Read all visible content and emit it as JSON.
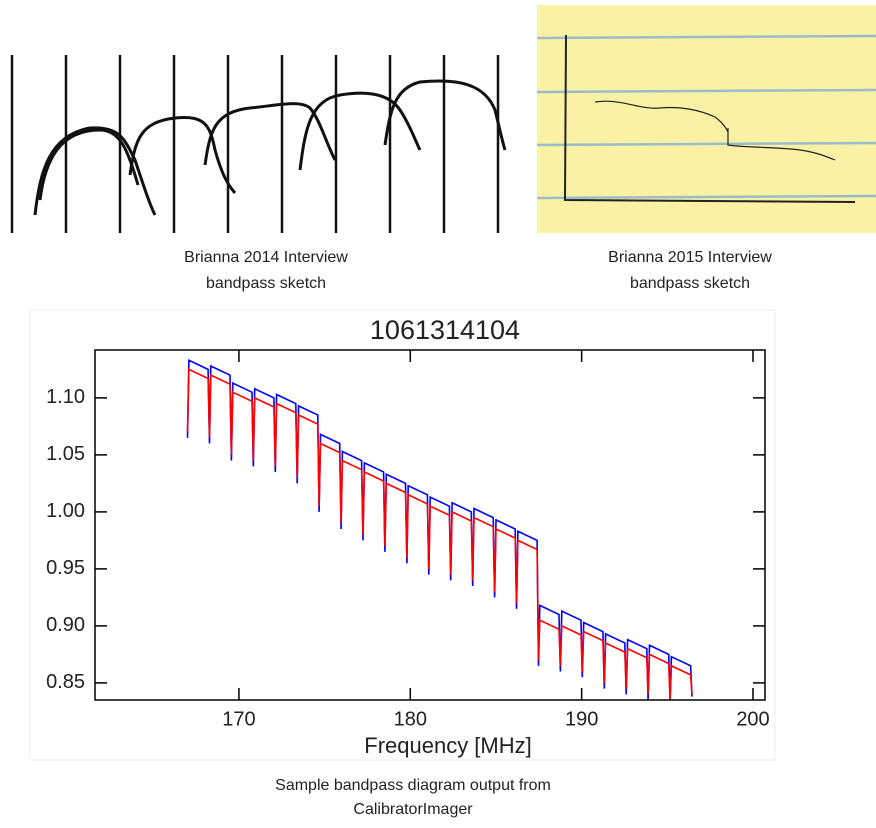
{
  "captions": {
    "sketch_2014": [
      "Brianna 2014 Interview",
      "bandpass sketch"
    ],
    "sketch_2015": [
      "Brianna 2015 Interview",
      "bandpass sketch"
    ],
    "chart": [
      "Sample bandpass diagram output from",
      "CalibratorImager"
    ]
  },
  "chart_data": {
    "type": "line",
    "title": "1061314104",
    "x_label": "Frequency [MHz]",
    "x": [
      167,
      167.08,
      168.2,
      168.28,
      168.36,
      169.48,
      169.56,
      169.64,
      170.76,
      170.84,
      170.92,
      172.04,
      172.12,
      172.2,
      173.32,
      173.4,
      173.48,
      174.6,
      174.68,
      174.76,
      175.88,
      175.96,
      176.04,
      177.16,
      177.24,
      177.32,
      178.44,
      178.52,
      178.6,
      179.72,
      179.8,
      179.88,
      181.0,
      181.08,
      181.16,
      182.28,
      182.36,
      182.44,
      183.56,
      183.64,
      183.72,
      184.84,
      184.92,
      185.0,
      186.12,
      186.2,
      186.28,
      187.4,
      187.48,
      187.56,
      188.68,
      188.76,
      188.84,
      189.96,
      190.04,
      190.12,
      191.24,
      191.32,
      191.4,
      192.52,
      192.6,
      192.68,
      193.8,
      193.88,
      193.96,
      195.08,
      195.16,
      195.24,
      196.36,
      196.44
    ],
    "series": [
      {
        "color": "#0000ff",
        "values": [
          1.065,
          1.133,
          1.125,
          1.06,
          1.128,
          1.12,
          1.045,
          1.113,
          1.105,
          1.04,
          1.108,
          1.1,
          1.035,
          1.103,
          1.095,
          1.025,
          1.093,
          1.085,
          1.0,
          1.068,
          1.06,
          0.985,
          1.053,
          1.045,
          0.975,
          1.043,
          1.035,
          0.965,
          1.033,
          1.025,
          0.955,
          1.023,
          1.015,
          0.945,
          1.013,
          1.005,
          0.94,
          1.008,
          1.0,
          0.935,
          1.003,
          0.995,
          0.925,
          0.993,
          0.985,
          0.915,
          0.983,
          0.975,
          0.865,
          0.918,
          0.91,
          0.86,
          0.913,
          0.905,
          0.855,
          0.903,
          0.895,
          0.845,
          0.893,
          0.885,
          0.84,
          0.888,
          0.88,
          0.835,
          0.883,
          0.875,
          0.835,
          0.873,
          0.865,
          0.838
        ]
      },
      {
        "color": "#ff0000",
        "values": [
          1.07,
          1.125,
          1.117,
          1.065,
          1.12,
          1.112,
          1.05,
          1.105,
          1.097,
          1.045,
          1.1,
          1.092,
          1.04,
          1.095,
          1.087,
          1.03,
          1.085,
          1.077,
          1.005,
          1.06,
          1.052,
          0.99,
          1.045,
          1.037,
          0.98,
          1.035,
          1.027,
          0.97,
          1.025,
          1.017,
          0.96,
          1.015,
          1.007,
          0.95,
          1.005,
          0.997,
          0.945,
          1.0,
          0.992,
          0.94,
          0.995,
          0.987,
          0.93,
          0.985,
          0.977,
          0.92,
          0.975,
          0.967,
          0.87,
          0.905,
          0.897,
          0.865,
          0.9,
          0.892,
          0.86,
          0.895,
          0.887,
          0.85,
          0.885,
          0.877,
          0.845,
          0.88,
          0.872,
          0.84,
          0.875,
          0.867,
          0.835,
          0.865,
          0.857,
          0.84
        ]
      }
    ],
    "xlim": [
      161.6,
      200.7
    ],
    "xticks": [
      170,
      180,
      190,
      200
    ],
    "ylim": [
      0.835,
      1.142
    ],
    "yticks": [
      0.85,
      {
        "value": 0.9,
        "label": "0.90"
      },
      0.95,
      {
        "value": 1.0,
        "label": "1.00"
      },
      1.05,
      {
        "value": 1.1,
        "label": "1.10"
      }
    ]
  }
}
